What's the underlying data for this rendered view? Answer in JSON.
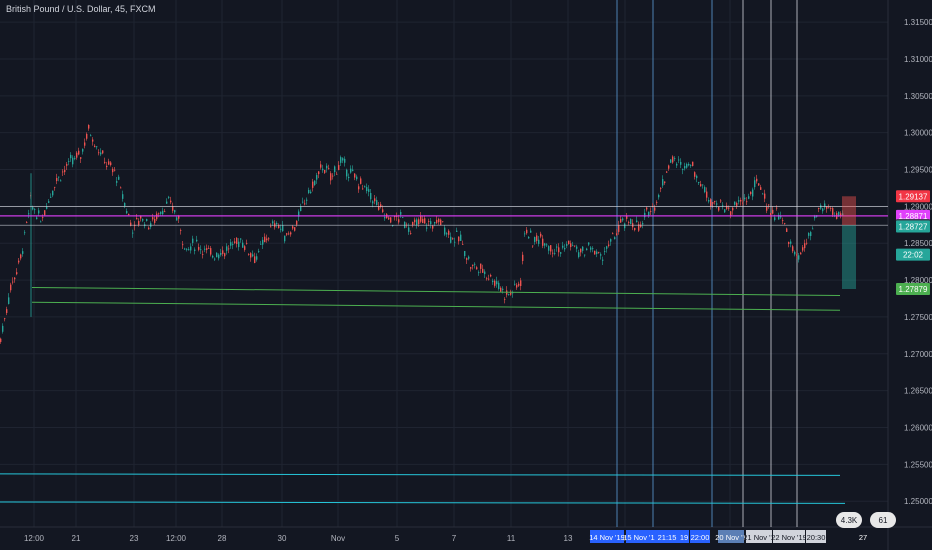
{
  "chart_title": "British Pound / U.S. Dollar, 45, FXCM",
  "chart_data": {
    "type": "candlestick",
    "title": "British Pound / U.S. Dollar, 45, FXCM",
    "y_ticks": [
      "1.31500",
      "1.31000",
      "1.30500",
      "1.30000",
      "1.29500",
      "1.29000",
      "1.28500",
      "1.28000",
      "1.27500",
      "1.27000",
      "1.26500",
      "1.26000",
      "1.25500",
      "1.25000"
    ],
    "x_ticks": [
      "12:00",
      "21",
      "23",
      "12:00",
      "28",
      "30",
      "Nov",
      "5",
      "7",
      "11",
      "13",
      "19",
      "20 Nov '1"
    ],
    "ylim": [
      1.2465,
      1.318
    ],
    "price_series": [
      [
        0,
        1.272
      ],
      [
        10,
        1.279
      ],
      [
        20,
        1.283
      ],
      [
        30,
        1.2905
      ],
      [
        40,
        1.288
      ],
      [
        55,
        1.2935
      ],
      [
        70,
        1.296
      ],
      [
        80,
        1.297
      ],
      [
        88,
        1.3005
      ],
      [
        95,
        1.2985
      ],
      [
        105,
        1.296
      ],
      [
        115,
        1.2945
      ],
      [
        125,
        1.29
      ],
      [
        132,
        1.287
      ],
      [
        140,
        1.2885
      ],
      [
        150,
        1.2875
      ],
      [
        160,
        1.2895
      ],
      [
        170,
        1.2905
      ],
      [
        178,
        1.288
      ],
      [
        185,
        1.284
      ],
      [
        195,
        1.285
      ],
      [
        210,
        1.2835
      ],
      [
        225,
        1.284
      ],
      [
        240,
        1.2855
      ],
      [
        255,
        1.283
      ],
      [
        265,
        1.2855
      ],
      [
        275,
        1.288
      ],
      [
        285,
        1.286
      ],
      [
        295,
        1.2875
      ],
      [
        305,
        1.291
      ],
      [
        315,
        1.2935
      ],
      [
        322,
        1.2955
      ],
      [
        330,
        1.294
      ],
      [
        340,
        1.296
      ],
      [
        350,
        1.2945
      ],
      [
        360,
        1.293
      ],
      [
        370,
        1.2915
      ],
      [
        380,
        1.2895
      ],
      [
        390,
        1.288
      ],
      [
        400,
        1.2885
      ],
      [
        410,
        1.287
      ],
      [
        420,
        1.288
      ],
      [
        430,
        1.2875
      ],
      [
        440,
        1.288
      ],
      [
        450,
        1.286
      ],
      [
        460,
        1.2855
      ],
      [
        470,
        1.282
      ],
      [
        480,
        1.2815
      ],
      [
        490,
        1.2805
      ],
      [
        500,
        1.279
      ],
      [
        505,
        1.278
      ],
      [
        512,
        1.2785
      ],
      [
        520,
        1.28
      ],
      [
        525,
        1.2875
      ],
      [
        532,
        1.285
      ],
      [
        540,
        1.286
      ],
      [
        550,
        1.2845
      ],
      [
        560,
        1.284
      ],
      [
        570,
        1.285
      ],
      [
        580,
        1.2835
      ],
      [
        590,
        1.2845
      ],
      [
        600,
        1.283
      ],
      [
        610,
        1.285
      ],
      [
        620,
        1.2875
      ],
      [
        630,
        1.288
      ],
      [
        640,
        1.287
      ],
      [
        648,
        1.2895
      ],
      [
        655,
        1.2905
      ],
      [
        662,
        1.293
      ],
      [
        670,
        1.2965
      ],
      [
        680,
        1.2955
      ],
      [
        690,
        1.296
      ],
      [
        700,
        1.293
      ],
      [
        710,
        1.291
      ],
      [
        720,
        1.29
      ],
      [
        730,
        1.2895
      ],
      [
        740,
        1.2905
      ],
      [
        750,
        1.2915
      ],
      [
        758,
        1.2935
      ],
      [
        765,
        1.2905
      ],
      [
        772,
        1.289
      ],
      [
        780,
        1.289
      ],
      [
        788,
        1.2855
      ],
      [
        795,
        1.283
      ],
      [
        802,
        1.284
      ],
      [
        810,
        1.286
      ],
      [
        818,
        1.2895
      ],
      [
        826,
        1.29
      ],
      [
        834,
        1.289
      ],
      [
        842,
        1.2885
      ]
    ],
    "horizontal_levels": [
      {
        "price": 1.29,
        "color": "#d1d4dc"
      },
      {
        "price": 1.28871,
        "color": "#e040fb"
      },
      {
        "price": 1.28745,
        "color": "#d1d4dc"
      }
    ],
    "trend_lines": [
      {
        "x1": 32,
        "y1": 1.279,
        "x2": 840,
        "y2": 1.2779,
        "color": "#4caf50"
      },
      {
        "x1": 32,
        "y1": 1.277,
        "x2": 840,
        "y2": 1.2759,
        "color": "#4caf50"
      },
      {
        "x1": 0,
        "y1": 1.2537,
        "x2": 840,
        "y2": 1.2535,
        "color": "#26c6da"
      },
      {
        "x1": 0,
        "y1": 1.2499,
        "x2": 845,
        "y2": 1.2497,
        "color": "#26c6da"
      }
    ],
    "vertical_lines": [
      {
        "x": 617,
        "color": "#5b9bd5"
      },
      {
        "x": 653,
        "color": "#5b9bd5"
      },
      {
        "x": 712,
        "color": "#5b9bd5"
      },
      {
        "x": 743,
        "color": "#d1d4dc"
      },
      {
        "x": 771,
        "color": "#d1d4dc"
      },
      {
        "x": 797,
        "color": "#d1d4dc"
      }
    ],
    "risk_box": {
      "red_top": 1.29137,
      "green_top": 1.28745,
      "green_bottom": 1.27879,
      "color_red": "#ef5350",
      "color_green": "#26a69a"
    },
    "price_labels": [
      {
        "text": "1.29137",
        "price": 1.29137,
        "bg": "#f23645"
      },
      {
        "text": "1.28871",
        "price": 1.28871,
        "bg": "#e040fb"
      },
      {
        "text": "1.28745",
        "price": 1.28745,
        "bg": "#363a45"
      },
      {
        "text": "1.28727",
        "price": 1.28727,
        "bg": "#26a69a"
      },
      {
        "text": "22:02",
        "price": 1.28345,
        "bg": "#26a69a"
      },
      {
        "text": "1.27879",
        "price": 1.27879,
        "bg": "#4caf50"
      }
    ],
    "time_labels": [
      {
        "text": "14 Nov '19",
        "bg": "#2962ff"
      },
      {
        "text": "15 Nov '19",
        "bg": "#2962ff"
      },
      {
        "text": "21:15",
        "bg": "#2962ff"
      },
      {
        "text": "19",
        "bg": "#2962ff"
      },
      {
        "text": "22:00",
        "bg": "#2962ff"
      },
      {
        "text": "20 Nov '1",
        "bg": "#5b7fb5"
      },
      {
        "text": "21 Nov '1",
        "bg": "#d1d4dc"
      },
      {
        "text": "22 Nov '19",
        "bg": "#d1d4dc"
      },
      {
        "text": "20:30",
        "bg": "#d1d4dc"
      },
      {
        "text": "27",
        "bg": "#131722"
      }
    ]
  },
  "badges": [
    {
      "label": "4.3K"
    },
    {
      "label": "61"
    }
  ],
  "colors": {
    "background": "#131722",
    "grid": "#1f2431",
    "bull": "#26a69a",
    "bear": "#ef5350",
    "axis_text": "#b2b5be"
  }
}
